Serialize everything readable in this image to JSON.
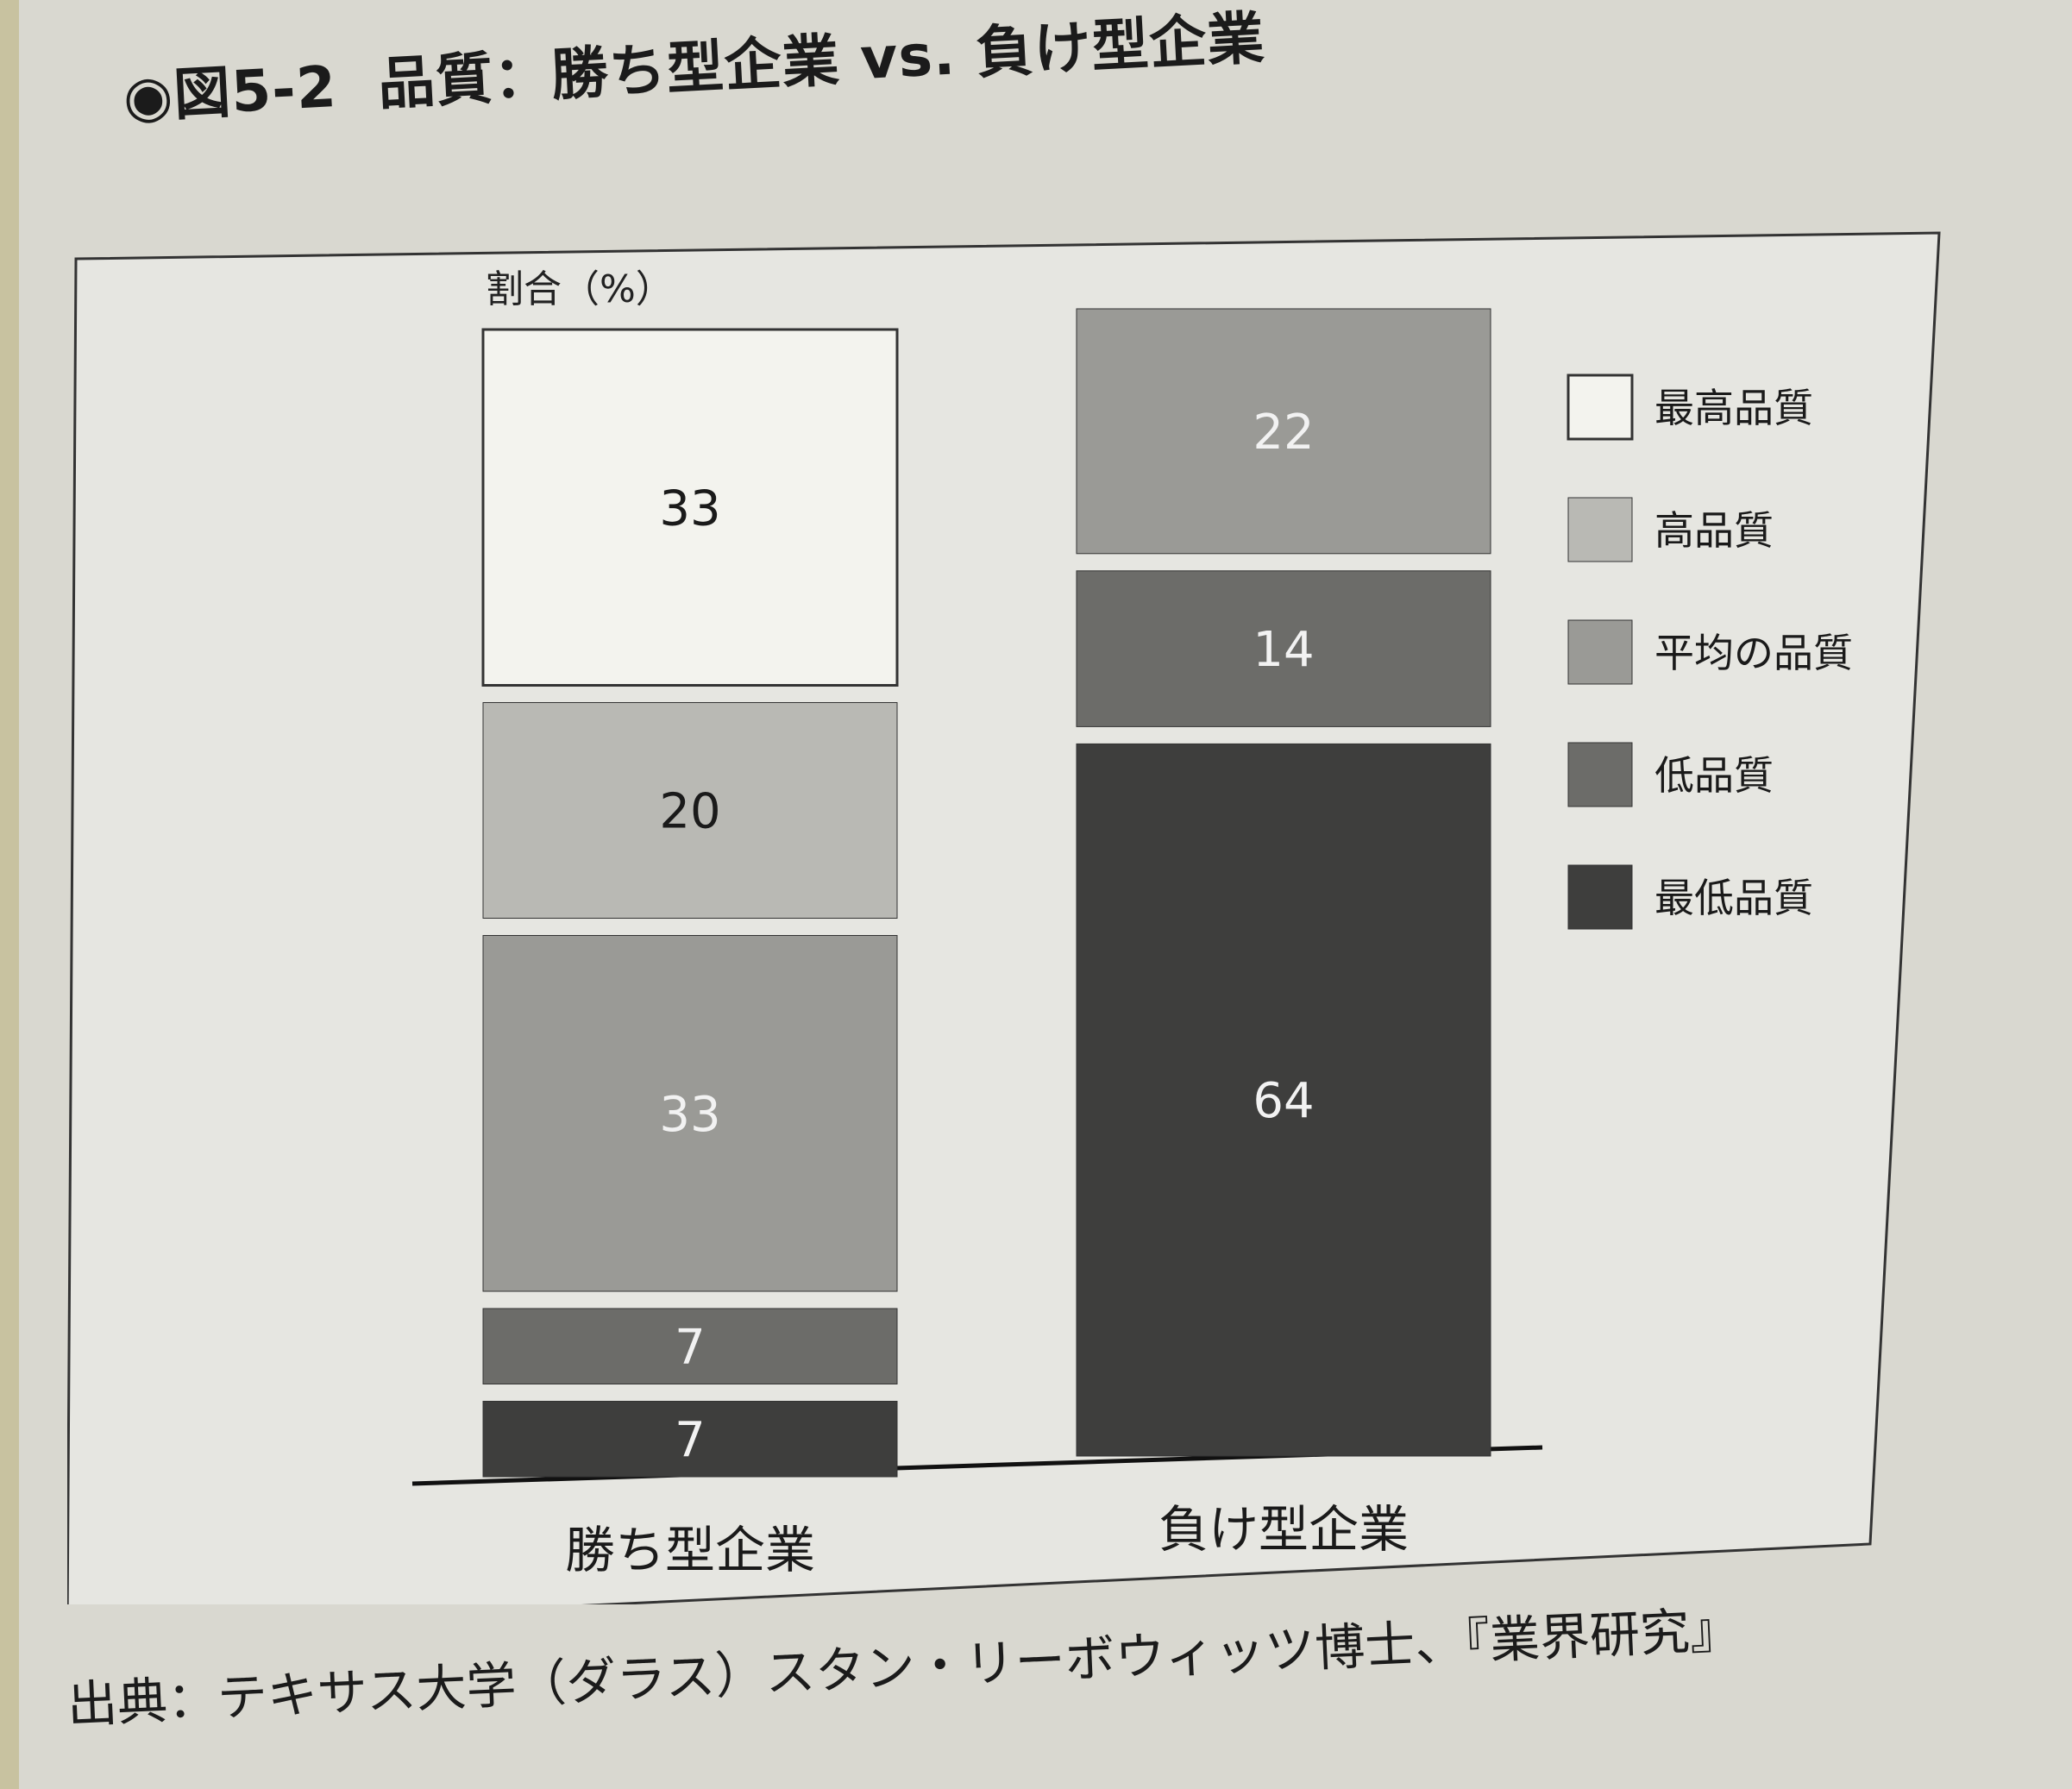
{
  "figure": {
    "number": "◉図5-2",
    "title": "品質：勝ち型企業 vs. 負け型企業",
    "source": "出典：テキサス大学（ダラス）スタン・リーボウィッツ博士、『業界研究』"
  },
  "chart_data": {
    "type": "bar",
    "stacked": true,
    "title": "品質：勝ち型企業 vs. 負け型企業",
    "ylabel": "割合（%）",
    "xlabel": "",
    "categories": [
      "勝ち型企業",
      "負け型企業"
    ],
    "series": [
      {
        "name": "最高品質",
        "values": [
          33,
          0
        ],
        "color": "#f3f3ee"
      },
      {
        "name": "高品質",
        "values": [
          20,
          0
        ],
        "color": "#b9b9b4"
      },
      {
        "name": "平均の品質",
        "values": [
          33,
          22
        ],
        "color": "#9a9a96"
      },
      {
        "name": "低品質",
        "values": [
          7,
          14
        ],
        "color": "#6c6c69"
      },
      {
        "name": "最低品質",
        "values": [
          7,
          64
        ],
        "color": "#3e3e3d"
      }
    ],
    "ylim": [
      0,
      100
    ],
    "legend_position": "right",
    "grid": false
  }
}
